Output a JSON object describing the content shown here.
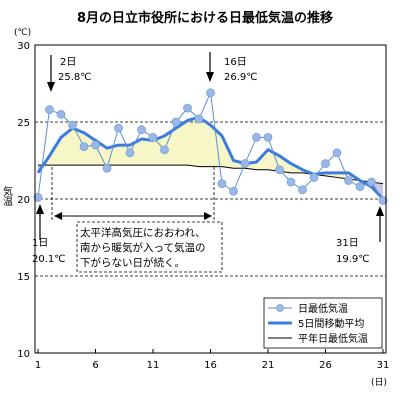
{
  "chart_data": {
    "type": "line",
    "title": "8月の日立市役所における日最低気温の推移",
    "ylabel": "気温",
    "y_unit": "(℃)",
    "x_unit": "(日)",
    "xlim": [
      1,
      31
    ],
    "ylim": [
      10,
      30
    ],
    "x_ticks": [
      1,
      6,
      11,
      16,
      21,
      26,
      31
    ],
    "y_ticks": [
      10,
      15,
      20,
      25,
      30
    ],
    "dashed_gridlines": [
      15,
      20,
      25
    ],
    "x": [
      1,
      2,
      3,
      4,
      5,
      6,
      7,
      8,
      9,
      10,
      11,
      12,
      13,
      14,
      15,
      16,
      17,
      18,
      19,
      20,
      21,
      22,
      23,
      24,
      25,
      26,
      27,
      28,
      29,
      30,
      31
    ],
    "series": [
      {
        "name": "日最低気温",
        "style": "thin-line-with-round-markers",
        "color": "#5b8fd6",
        "marker_color": "#9ab8e6",
        "values": [
          20.1,
          25.8,
          25.5,
          24.8,
          23.4,
          23.5,
          22.0,
          24.6,
          23.0,
          24.5,
          24.0,
          23.2,
          25.0,
          25.9,
          25.2,
          26.9,
          21.0,
          20.5,
          22.3,
          24.0,
          24.0,
          21.9,
          21.1,
          20.6,
          21.4,
          22.3,
          23.0,
          21.2,
          20.8,
          21.1,
          19.9
        ]
      },
      {
        "name": "5日間移動平均",
        "style": "thick-line",
        "color": "#3c7be0",
        "values": [
          21.7,
          22.8,
          24.0,
          24.6,
          24.3,
          23.8,
          23.3,
          23.5,
          23.5,
          23.9,
          23.8,
          24.1,
          24.6,
          25.1,
          25.3,
          24.8,
          24.1,
          22.5,
          22.3,
          22.4,
          23.2,
          22.8,
          22.3,
          21.9,
          21.6,
          21.7,
          21.7,
          21.7,
          21.2,
          20.8,
          20.0
        ]
      },
      {
        "name": "平年日最低気温",
        "style": "thin-black-line",
        "color": "#000000",
        "values": [
          22.2,
          22.2,
          22.2,
          22.2,
          22.2,
          22.2,
          22.2,
          22.2,
          22.2,
          22.2,
          22.2,
          22.2,
          22.2,
          22.2,
          22.1,
          22.1,
          22.1,
          22.0,
          22.0,
          21.9,
          21.9,
          21.8,
          21.7,
          21.7,
          21.6,
          21.5,
          21.4,
          21.3,
          21.2,
          21.1,
          21.0
        ]
      }
    ],
    "fill_above_normal_color": "#f7f6c6",
    "fill_below_normal_color": "#c8c8e8",
    "legend": "inside-bottom-right",
    "grid": "horizontal-dashed",
    "annotations": {
      "day2": {
        "line1": "2日",
        "line2": "25.8℃",
        "x": 2
      },
      "day16": {
        "line1": "16日",
        "line2": "26.9℃",
        "x": 16
      },
      "day1": {
        "line1": "1日",
        "line2": "20.1℃",
        "x": 1
      },
      "day31": {
        "line1": "31日",
        "line2": "19.9℃",
        "x": 31
      },
      "period": {
        "from": 2,
        "to": 16
      },
      "comment": [
        "太平洋高気圧におおわれ、",
        "南から暖気が入って気温の",
        "下がらない日が続く。"
      ]
    }
  }
}
